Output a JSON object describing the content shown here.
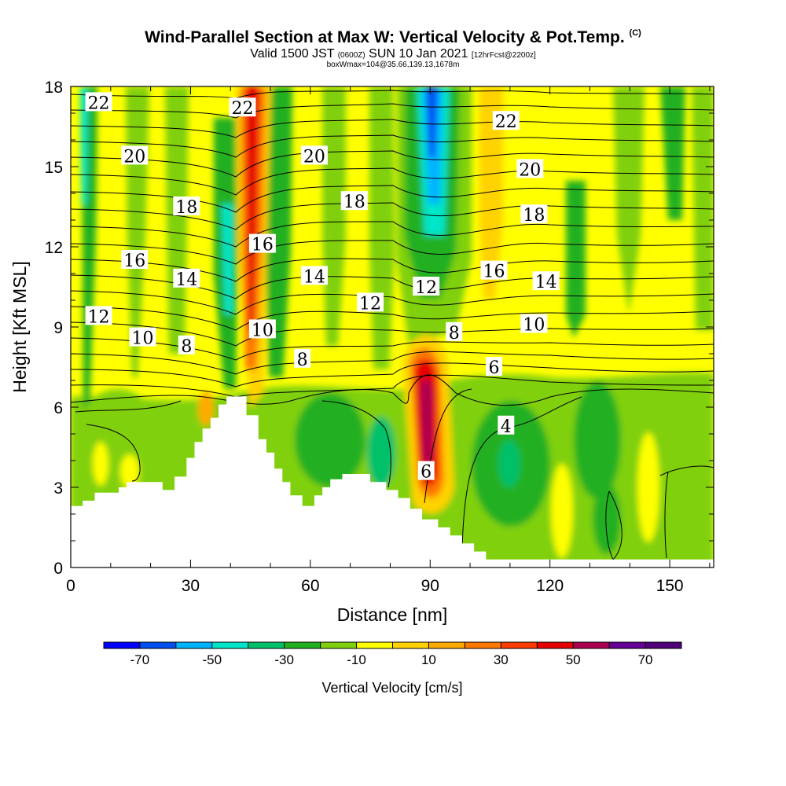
{
  "title_main": "Wind-Parallel Section at Max W: Vertical Velocity & Pot.Temp.",
  "title_mark": "(C)",
  "subtitle_a": "Valid 1500 JST",
  "subtitle_b": "(0600Z)",
  "subtitle_c": "SUN 10 Jan 2021",
  "subtitle_d": "[12hrFcst@2200z]",
  "subtitle_box": "boxWmax=104@35.66,139.13,1678m",
  "chart_data": {
    "type": "heatmap",
    "xlabel": "Distance [nm]",
    "ylabel": "Height [Kft MSL]",
    "xlim": [
      0,
      161
    ],
    "ylim": [
      0,
      18
    ],
    "x_ticks": [
      0,
      30,
      60,
      90,
      120,
      150
    ],
    "y_ticks": [
      0,
      3,
      6,
      9,
      12,
      15,
      18
    ],
    "colorbar": {
      "label": "Vertical Velocity [cm/s]",
      "tick_values": [
        -70,
        -50,
        -30,
        -10,
        10,
        30,
        50,
        70
      ],
      "bins": [
        -80,
        -70,
        -60,
        -50,
        -40,
        -30,
        -20,
        -10,
        0,
        10,
        20,
        30,
        40,
        50,
        60,
        70,
        80
      ],
      "colors": [
        "#0000ff",
        "#0050f0",
        "#00b4ff",
        "#00e6c8",
        "#00c06a",
        "#20b020",
        "#80d010",
        "#ffff00",
        "#ffd200",
        "#ffaa00",
        "#ff7800",
        "#ff3c00",
        "#e60000",
        "#aa0050",
        "#640096",
        "#500078"
      ]
    },
    "vertical_velocity_features": [
      {
        "kind": "updraft",
        "x": 45,
        "y_range": [
          6,
          18
        ],
        "peak_cm_s": 50
      },
      {
        "kind": "updraft",
        "x": 90,
        "y_range": [
          3,
          8
        ],
        "peak_cm_s": 70
      },
      {
        "kind": "downdraft",
        "x": 90,
        "y_range": [
          11,
          18
        ],
        "peak_cm_s": -60
      },
      {
        "kind": "downdraft",
        "x": 3,
        "y_range": [
          11,
          18
        ],
        "peak_cm_s": -35
      }
    ],
    "terrain": [
      [
        0,
        2.3
      ],
      [
        3,
        2.3
      ],
      [
        3,
        2.5
      ],
      [
        6,
        2.5
      ],
      [
        6,
        2.8
      ],
      [
        12,
        2.8
      ],
      [
        12,
        3.0
      ],
      [
        14,
        3.0
      ],
      [
        14,
        3.2
      ],
      [
        23,
        3.2
      ],
      [
        23,
        2.9
      ],
      [
        26,
        2.9
      ],
      [
        26,
        3.4
      ],
      [
        29,
        3.4
      ],
      [
        29,
        4.1
      ],
      [
        31,
        4.1
      ],
      [
        31,
        4.7
      ],
      [
        33,
        4.7
      ],
      [
        33,
        5.2
      ],
      [
        35,
        5.2
      ],
      [
        35,
        5.6
      ],
      [
        37,
        5.6
      ],
      [
        37,
        6.1
      ],
      [
        39,
        6.1
      ],
      [
        39,
        6.4
      ],
      [
        44,
        6.4
      ],
      [
        44,
        5.7
      ],
      [
        47,
        5.7
      ],
      [
        47,
        4.8
      ],
      [
        49,
        4.8
      ],
      [
        49,
        4.3
      ],
      [
        51,
        4.3
      ],
      [
        51,
        3.7
      ],
      [
        53,
        3.7
      ],
      [
        53,
        3.2
      ],
      [
        55,
        3.2
      ],
      [
        55,
        2.7
      ],
      [
        58,
        2.7
      ],
      [
        58,
        2.3
      ],
      [
        61,
        2.3
      ],
      [
        61,
        2.7
      ],
      [
        63,
        2.7
      ],
      [
        63,
        3.0
      ],
      [
        65,
        3.0
      ],
      [
        65,
        3.3
      ],
      [
        68,
        3.3
      ],
      [
        68,
        3.5
      ],
      [
        75,
        3.5
      ],
      [
        75,
        3.2
      ],
      [
        79,
        3.2
      ],
      [
        79,
        2.9
      ],
      [
        82,
        2.9
      ],
      [
        82,
        2.6
      ],
      [
        85,
        2.6
      ],
      [
        85,
        2.2
      ],
      [
        88,
        2.2
      ],
      [
        88,
        1.8
      ],
      [
        92,
        1.8
      ],
      [
        92,
        1.5
      ],
      [
        95,
        1.5
      ],
      [
        95,
        1.2
      ],
      [
        98,
        1.2
      ],
      [
        98,
        0.9
      ],
      [
        101,
        0.9
      ],
      [
        101,
        0.6
      ],
      [
        104,
        0.6
      ],
      [
        104,
        0.3
      ],
      [
        161,
        0.3
      ]
    ],
    "theta_contour_labels": [
      {
        "text": "22",
        "x": 7,
        "y": 17.4
      },
      {
        "text": "20",
        "x": 16,
        "y": 15.4
      },
      {
        "text": "18",
        "x": 29,
        "y": 13.5
      },
      {
        "text": "16",
        "x": 16,
        "y": 11.5
      },
      {
        "text": "14",
        "x": 29,
        "y": 10.8
      },
      {
        "text": "12",
        "x": 7,
        "y": 9.4
      },
      {
        "text": "10",
        "x": 18,
        "y": 8.6
      },
      {
        "text": "8",
        "x": 29,
        "y": 8.3
      },
      {
        "text": "22",
        "x": 43,
        "y": 17.2
      },
      {
        "text": "20",
        "x": 61,
        "y": 15.4
      },
      {
        "text": "18",
        "x": 71,
        "y": 13.7
      },
      {
        "text": "16",
        "x": 48,
        "y": 12.1
      },
      {
        "text": "14",
        "x": 61,
        "y": 10.9
      },
      {
        "text": "12",
        "x": 75,
        "y": 9.9
      },
      {
        "text": "10",
        "x": 48,
        "y": 8.9
      },
      {
        "text": "8",
        "x": 58,
        "y": 7.8
      },
      {
        "text": "22",
        "x": 109,
        "y": 16.7
      },
      {
        "text": "20",
        "x": 115,
        "y": 14.9
      },
      {
        "text": "18",
        "x": 116,
        "y": 13.2
      },
      {
        "text": "16",
        "x": 106,
        "y": 11.1
      },
      {
        "text": "14",
        "x": 119,
        "y": 10.7
      },
      {
        "text": "12",
        "x": 89,
        "y": 10.5
      },
      {
        "text": "10",
        "x": 116,
        "y": 9.1
      },
      {
        "text": "8",
        "x": 96,
        "y": 8.8
      },
      {
        "text": "6",
        "x": 106,
        "y": 7.5
      },
      {
        "text": "4",
        "x": 109,
        "y": 5.3
      },
      {
        "text": "6",
        "x": 89,
        "y": 3.6
      }
    ]
  }
}
